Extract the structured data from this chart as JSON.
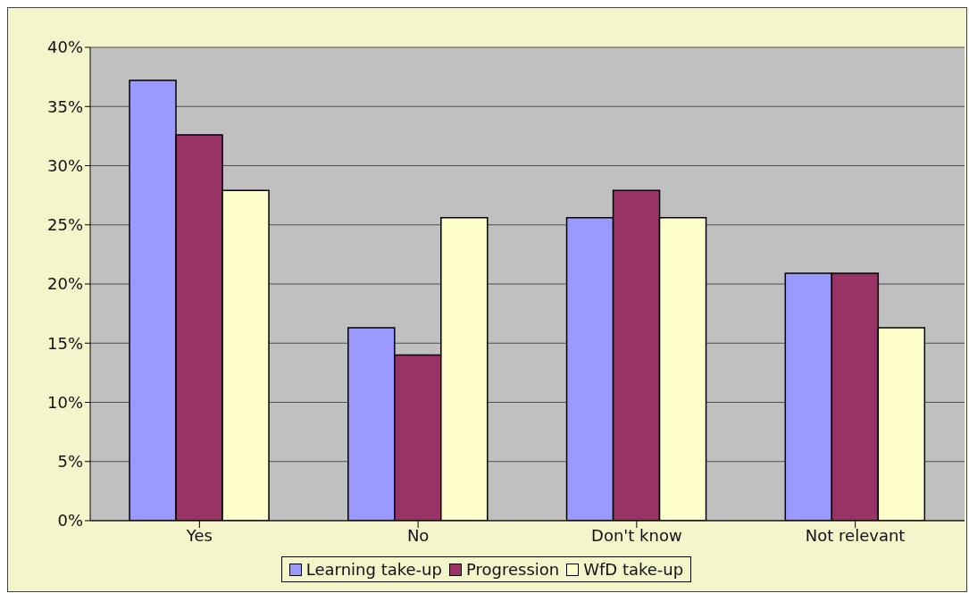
{
  "chart_data": {
    "type": "bar",
    "categories": [
      "Yes",
      "No",
      "Don't know",
      "Not relevant"
    ],
    "series": [
      {
        "name": "Learning take-up",
        "color": "#9999ff",
        "values": [
          37.2,
          16.3,
          25.6,
          20.9
        ]
      },
      {
        "name": "Progression",
        "color": "#993366",
        "values": [
          32.6,
          14.0,
          27.9,
          20.9
        ]
      },
      {
        "name": "WfD take-up",
        "color": "#ffffcc",
        "values": [
          27.9,
          25.6,
          25.6,
          16.3
        ]
      }
    ],
    "ylim": [
      0,
      40
    ],
    "yticks": [
      {
        "value": 0,
        "label": "0%"
      },
      {
        "value": 5,
        "label": "5%"
      },
      {
        "value": 10,
        "label": "10%"
      },
      {
        "value": 15,
        "label": "15%"
      },
      {
        "value": 20,
        "label": "20%"
      },
      {
        "value": 25,
        "label": "25%"
      },
      {
        "value": 30,
        "label": "30%"
      },
      {
        "value": 35,
        "label": "35%"
      },
      {
        "value": 40,
        "label": "40%"
      }
    ],
    "grid": "y",
    "legend": "bottom"
  }
}
